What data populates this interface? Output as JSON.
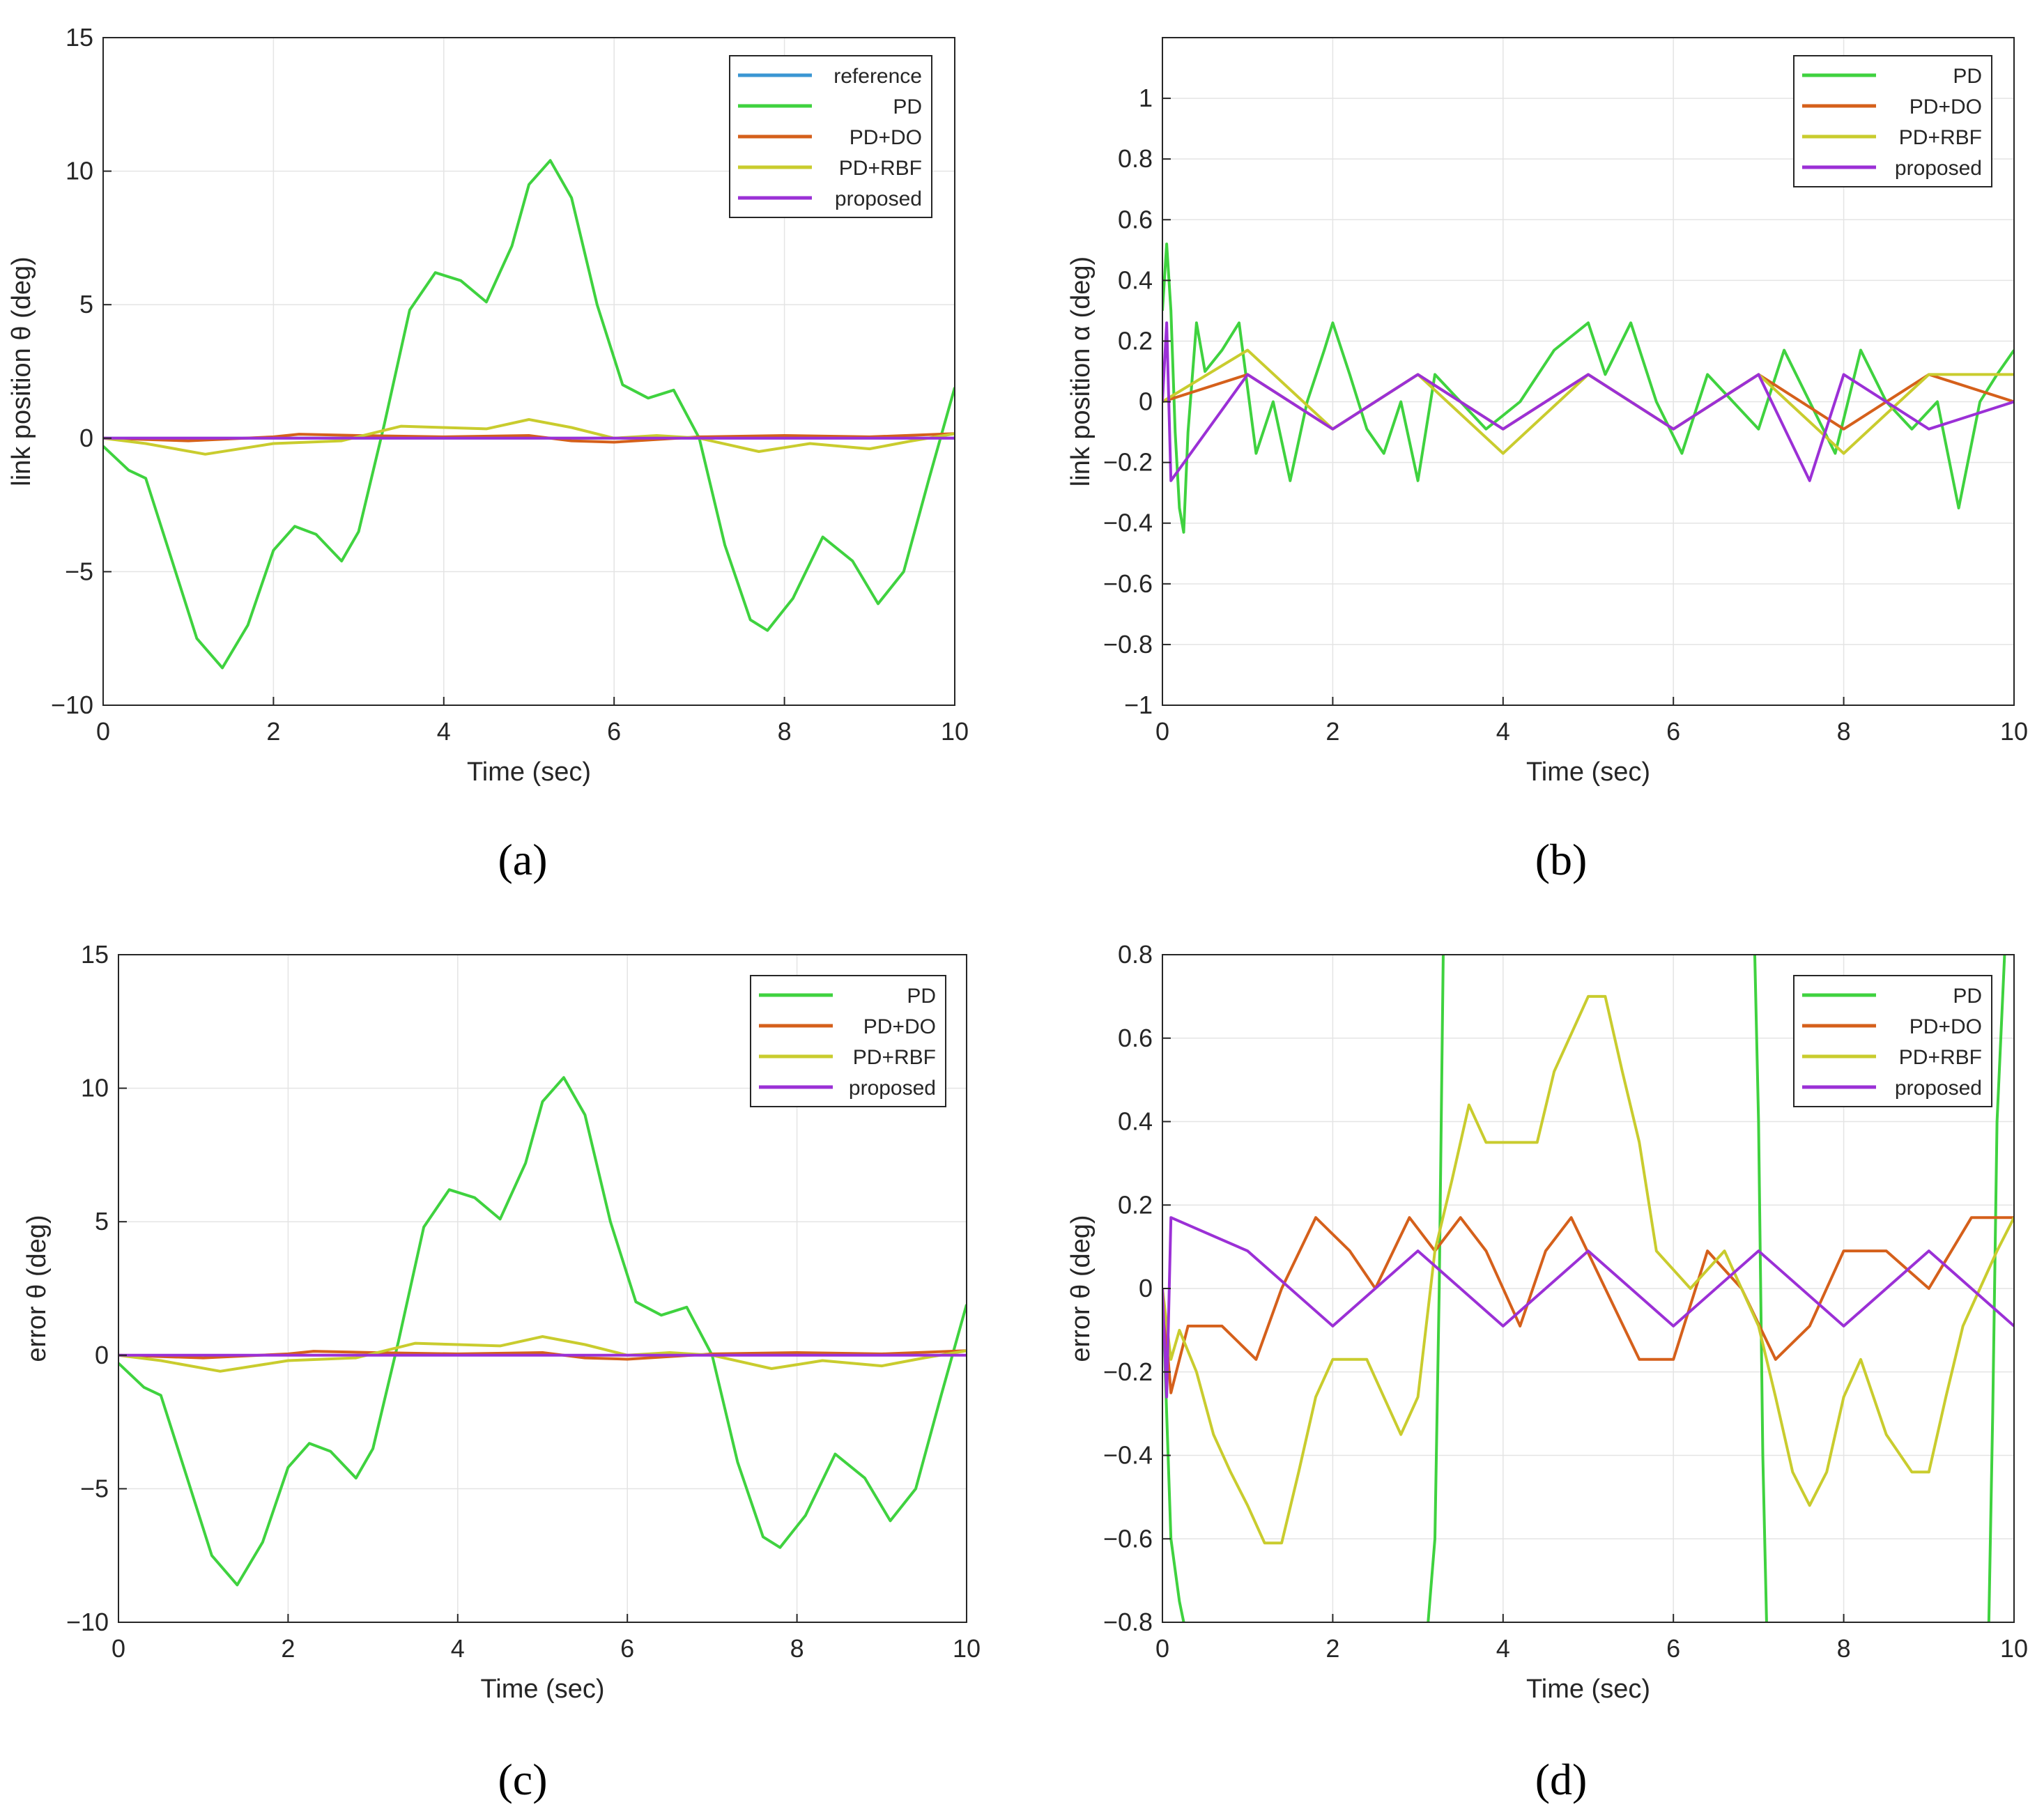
{
  "figure": {
    "colors": {
      "reference": "#3a96d3",
      "PD": "#3fd23f",
      "PD+DO": "#d5601b",
      "PD+RBF": "#c9cc2e",
      "proposed": "#9b30d6",
      "grid": "#e4e4e4",
      "axis": "#262626"
    }
  },
  "chart_data": [
    {
      "id": "a",
      "panel_label": "(a)",
      "type": "line",
      "xlabel": "Time (sec)",
      "ylabel": "link position θ (deg)",
      "xlim": [
        0,
        10
      ],
      "ylim": [
        -10,
        15
      ],
      "xticks": [
        0,
        2,
        4,
        6,
        8,
        10
      ],
      "yticks": [
        -10,
        -5,
        0,
        5,
        10,
        15
      ],
      "grid": true,
      "legend": {
        "position": "top-right",
        "entries": [
          "reference",
          "PD",
          "PD+DO",
          "PD+RBF",
          "proposed"
        ]
      },
      "series": [
        {
          "name": "reference",
          "x": [
            0,
            10
          ],
          "y": [
            0,
            0
          ]
        },
        {
          "name": "PD",
          "x": [
            0,
            0.3,
            0.5,
            0.8,
            1.1,
            1.4,
            1.7,
            2.0,
            2.25,
            2.5,
            2.8,
            3.0,
            3.3,
            3.6,
            3.9,
            4.2,
            4.5,
            4.8,
            5.0,
            5.25,
            5.5,
            5.8,
            6.1,
            6.4,
            6.7,
            7.0,
            7.3,
            7.6,
            7.8,
            8.1,
            8.45,
            8.8,
            9.1,
            9.4,
            9.7,
            10.0
          ],
          "y": [
            -0.3,
            -1.2,
            -1.5,
            -4.5,
            -7.5,
            -8.6,
            -7.0,
            -4.2,
            -3.3,
            -3.6,
            -4.6,
            -3.5,
            0.5,
            4.8,
            6.2,
            5.9,
            5.1,
            7.2,
            9.5,
            10.4,
            9.0,
            5.0,
            2.0,
            1.5,
            1.8,
            0.0,
            -4.0,
            -6.8,
            -7.2,
            -6.0,
            -3.7,
            -4.6,
            -6.2,
            -5.0,
            -1.5,
            1.9
          ]
        },
        {
          "name": "PD+DO",
          "x": [
            0,
            1,
            2,
            2.3,
            3,
            4,
            5,
            5.5,
            6,
            7,
            8,
            9,
            10
          ],
          "y": [
            0,
            -0.1,
            0.05,
            0.15,
            0.1,
            0.05,
            0.1,
            -0.1,
            -0.15,
            0.05,
            0.1,
            0.05,
            0.17
          ]
        },
        {
          "name": "PD+RBF",
          "x": [
            0,
            0.5,
            1.2,
            2,
            2.8,
            3.5,
            4,
            4.5,
            5,
            5.5,
            6,
            6.5,
            7,
            7.7,
            8.3,
            9,
            9.5,
            10
          ],
          "y": [
            0,
            -0.2,
            -0.6,
            -0.2,
            -0.1,
            0.45,
            0.4,
            0.35,
            0.7,
            0.4,
            0.0,
            0.1,
            0.0,
            -0.5,
            -0.2,
            -0.4,
            -0.1,
            0.17
          ]
        },
        {
          "name": "proposed",
          "x": [
            0,
            1,
            2,
            3,
            4,
            5,
            6,
            7,
            8,
            9,
            10
          ],
          "y": [
            0,
            0,
            0,
            0,
            0,
            0,
            0,
            0,
            0,
            0,
            0
          ]
        }
      ]
    },
    {
      "id": "b",
      "panel_label": "(b)",
      "type": "line",
      "xlabel": "Time (sec)",
      "ylabel": "link position α (deg)",
      "xlim": [
        0,
        10
      ],
      "ylim": [
        -1,
        1.2
      ],
      "xticks": [
        0,
        2,
        4,
        6,
        8,
        10
      ],
      "yticks": [
        -1,
        -0.8,
        -0.6,
        -0.4,
        -0.2,
        0,
        0.2,
        0.4,
        0.6,
        0.8,
        1
      ],
      "ytick_labels": [
        "−1",
        "−0.8",
        "−0.6",
        "−0.4",
        "−0.2",
        "0",
        "0.2",
        "0.4",
        "0.6",
        "0.8",
        "1"
      ],
      "grid": true,
      "legend": {
        "position": "top-right",
        "entries": [
          "PD",
          "PD+DO",
          "PD+RBF",
          "proposed"
        ]
      },
      "series": [
        {
          "name": "PD",
          "x": [
            0,
            0.05,
            0.1,
            0.15,
            0.2,
            0.25,
            0.3,
            0.4,
            0.5,
            0.7,
            0.9,
            1.1,
            1.3,
            1.5,
            1.7,
            1.9,
            2.0,
            2.2,
            2.4,
            2.6,
            2.8,
            3.0,
            3.2,
            3.5,
            3.8,
            4.2,
            4.6,
            5.0,
            5.2,
            5.5,
            5.8,
            6.1,
            6.4,
            6.7,
            7.0,
            7.3,
            7.6,
            7.9,
            8.2,
            8.5,
            8.8,
            9.1,
            9.35,
            9.6,
            9.8,
            10.0
          ],
          "y": [
            0.3,
            0.52,
            0.3,
            -0.1,
            -0.35,
            -0.43,
            -0.1,
            0.26,
            0.1,
            0.17,
            0.26,
            -0.17,
            0.0,
            -0.26,
            0.0,
            0.17,
            0.26,
            0.09,
            -0.09,
            -0.17,
            0.0,
            -0.26,
            0.09,
            0.0,
            -0.09,
            0.0,
            0.17,
            0.26,
            0.09,
            0.26,
            0.0,
            -0.17,
            0.09,
            0.0,
            -0.09,
            0.17,
            0.0,
            -0.17,
            0.17,
            0.0,
            -0.09,
            0.0,
            -0.35,
            0.0,
            0.09,
            0.17
          ]
        },
        {
          "name": "PD+DO",
          "x": [
            0,
            1,
            2,
            3,
            4,
            5,
            6,
            7,
            8,
            9,
            10
          ],
          "y": [
            0,
            0.09,
            -0.09,
            0.09,
            -0.09,
            0.09,
            -0.09,
            0.09,
            -0.09,
            0.09,
            0
          ]
        },
        {
          "name": "PD+RBF",
          "x": [
            0,
            1,
            2,
            3,
            4,
            5,
            6,
            7,
            8,
            9,
            10
          ],
          "y": [
            0,
            0.17,
            -0.09,
            0.09,
            -0.17,
            0.09,
            -0.09,
            0.09,
            -0.17,
            0.09,
            0.09
          ]
        },
        {
          "name": "proposed",
          "x": [
            0,
            0.05,
            0.1,
            1,
            2,
            3,
            4,
            5,
            6,
            7,
            7.6,
            8,
            9,
            10
          ],
          "y": [
            0,
            0.26,
            -0.26,
            0.09,
            -0.09,
            0.09,
            -0.09,
            0.09,
            -0.09,
            0.09,
            -0.26,
            0.09,
            -0.09,
            0
          ]
        }
      ]
    },
    {
      "id": "c",
      "panel_label": "(c)",
      "type": "line",
      "xlabel": "Time (sec)",
      "ylabel": "error θ (deg)",
      "xlim": [
        0,
        10
      ],
      "ylim": [
        -10,
        15
      ],
      "xticks": [
        0,
        2,
        4,
        6,
        8,
        10
      ],
      "yticks": [
        -10,
        -5,
        0,
        5,
        10,
        15
      ],
      "grid": true,
      "legend": {
        "position": "top-right",
        "entries": [
          "PD",
          "PD+DO",
          "PD+RBF",
          "proposed"
        ]
      },
      "series": [
        {
          "name": "PD",
          "x": [
            0,
            0.3,
            0.5,
            0.8,
            1.1,
            1.4,
            1.7,
            2.0,
            2.25,
            2.5,
            2.8,
            3.0,
            3.3,
            3.6,
            3.9,
            4.2,
            4.5,
            4.8,
            5.0,
            5.25,
            5.5,
            5.8,
            6.1,
            6.4,
            6.7,
            7.0,
            7.3,
            7.6,
            7.8,
            8.1,
            8.45,
            8.8,
            9.1,
            9.4,
            9.7,
            10.0
          ],
          "y": [
            -0.3,
            -1.2,
            -1.5,
            -4.5,
            -7.5,
            -8.6,
            -7.0,
            -4.2,
            -3.3,
            -3.6,
            -4.6,
            -3.5,
            0.5,
            4.8,
            6.2,
            5.9,
            5.1,
            7.2,
            9.5,
            10.4,
            9.0,
            5.0,
            2.0,
            1.5,
            1.8,
            0.0,
            -4.0,
            -6.8,
            -7.2,
            -6.0,
            -3.7,
            -4.6,
            -6.2,
            -5.0,
            -1.5,
            1.9
          ]
        },
        {
          "name": "PD+DO",
          "x": [
            0,
            1,
            2,
            2.3,
            3,
            4,
            5,
            5.5,
            6,
            7,
            8,
            9,
            10
          ],
          "y": [
            0,
            -0.1,
            0.05,
            0.15,
            0.1,
            0.05,
            0.1,
            -0.1,
            -0.15,
            0.05,
            0.1,
            0.05,
            0.17
          ]
        },
        {
          "name": "PD+RBF",
          "x": [
            0,
            0.5,
            1.2,
            2,
            2.8,
            3.5,
            4,
            4.5,
            5,
            5.5,
            6,
            6.5,
            7,
            7.7,
            8.3,
            9,
            9.5,
            10
          ],
          "y": [
            0,
            -0.2,
            -0.6,
            -0.2,
            -0.1,
            0.45,
            0.4,
            0.35,
            0.7,
            0.4,
            0.0,
            0.1,
            0.0,
            -0.5,
            -0.2,
            -0.4,
            -0.1,
            0.17
          ]
        },
        {
          "name": "proposed",
          "x": [
            0,
            1,
            2,
            3,
            4,
            5,
            6,
            7,
            8,
            9,
            10
          ],
          "y": [
            0,
            0,
            0,
            0,
            0,
            0,
            0,
            0,
            0,
            0,
            0
          ]
        }
      ]
    },
    {
      "id": "d",
      "panel_label": "(d)",
      "type": "line",
      "xlabel": "Time (sec)",
      "ylabel": "error θ (deg)",
      "xlim": [
        0,
        10
      ],
      "ylim": [
        -0.8,
        0.8
      ],
      "xticks": [
        0,
        2,
        4,
        6,
        8,
        10
      ],
      "yticks": [
        -0.8,
        -0.6,
        -0.4,
        -0.2,
        0,
        0.2,
        0.4,
        0.6,
        0.8
      ],
      "ytick_labels": [
        "−0.8",
        "−0.6",
        "−0.4",
        "−0.2",
        "0",
        "0.2",
        "0.4",
        "0.6",
        "0.8"
      ],
      "grid": true,
      "legend": {
        "position": "top-right",
        "entries": [
          "PD",
          "PD+DO",
          "PD+RBF",
          "proposed"
        ]
      },
      "series": [
        {
          "name": "PD",
          "x": [
            0,
            0.1,
            0.2,
            0.3,
            3.1,
            3.2,
            3.25,
            3.3,
            6.95,
            7.0,
            7.05,
            7.1,
            9.7,
            9.75,
            9.8,
            9.9
          ],
          "y": [
            0,
            -0.6,
            -0.75,
            -0.85,
            -0.85,
            -0.6,
            0.0,
            0.85,
            0.85,
            0.4,
            -0.4,
            -0.85,
            -0.85,
            -0.3,
            0.4,
            0.85
          ]
        },
        {
          "name": "PD+DO",
          "x": [
            0,
            0.1,
            0.3,
            0.7,
            1.1,
            1.4,
            1.8,
            2.2,
            2.5,
            2.9,
            3.2,
            3.5,
            3.8,
            4.2,
            4.5,
            4.8,
            5.2,
            5.6,
            6.0,
            6.4,
            6.8,
            7.2,
            7.6,
            8.0,
            8.5,
            9.0,
            9.5,
            10.0
          ],
          "y": [
            0,
            -0.25,
            -0.09,
            -0.09,
            -0.17,
            0.0,
            0.17,
            0.09,
            0.0,
            0.17,
            0.09,
            0.17,
            0.09,
            -0.09,
            0.09,
            0.17,
            0.0,
            -0.17,
            -0.17,
            0.09,
            0.0,
            -0.17,
            -0.09,
            0.09,
            0.09,
            0.0,
            0.17,
            0.17
          ]
        },
        {
          "name": "PD+RBF",
          "x": [
            0,
            0.1,
            0.2,
            0.4,
            0.6,
            0.8,
            1.0,
            1.2,
            1.4,
            1.6,
            1.8,
            2.0,
            2.4,
            2.6,
            2.8,
            3.0,
            3.2,
            3.4,
            3.6,
            3.8,
            4.1,
            4.4,
            4.6,
            4.8,
            5.0,
            5.2,
            5.4,
            5.6,
            5.8,
            6.2,
            6.6,
            7.0,
            7.2,
            7.4,
            7.6,
            7.8,
            8.0,
            8.2,
            8.5,
            8.8,
            9.0,
            9.2,
            9.4,
            9.6,
            9.8,
            10.0
          ],
          "y": [
            0,
            -0.17,
            -0.1,
            -0.2,
            -0.35,
            -0.44,
            -0.52,
            -0.61,
            -0.61,
            -0.44,
            -0.26,
            -0.17,
            -0.17,
            -0.26,
            -0.35,
            -0.26,
            0.09,
            0.26,
            0.44,
            0.35,
            0.35,
            0.35,
            0.52,
            0.61,
            0.7,
            0.7,
            0.52,
            0.35,
            0.09,
            0.0,
            0.09,
            -0.09,
            -0.26,
            -0.44,
            -0.52,
            -0.44,
            -0.26,
            -0.17,
            -0.35,
            -0.44,
            -0.44,
            -0.26,
            -0.09,
            0.0,
            0.09,
            0.17
          ]
        },
        {
          "name": "proposed",
          "x": [
            0,
            0.05,
            0.1,
            1,
            2,
            3,
            4,
            5,
            6,
            7,
            8,
            9,
            10
          ],
          "y": [
            0,
            -0.26,
            0.17,
            0.09,
            -0.09,
            0.09,
            -0.09,
            0.09,
            -0.09,
            0.09,
            -0.09,
            0.09,
            -0.09
          ]
        }
      ]
    }
  ]
}
